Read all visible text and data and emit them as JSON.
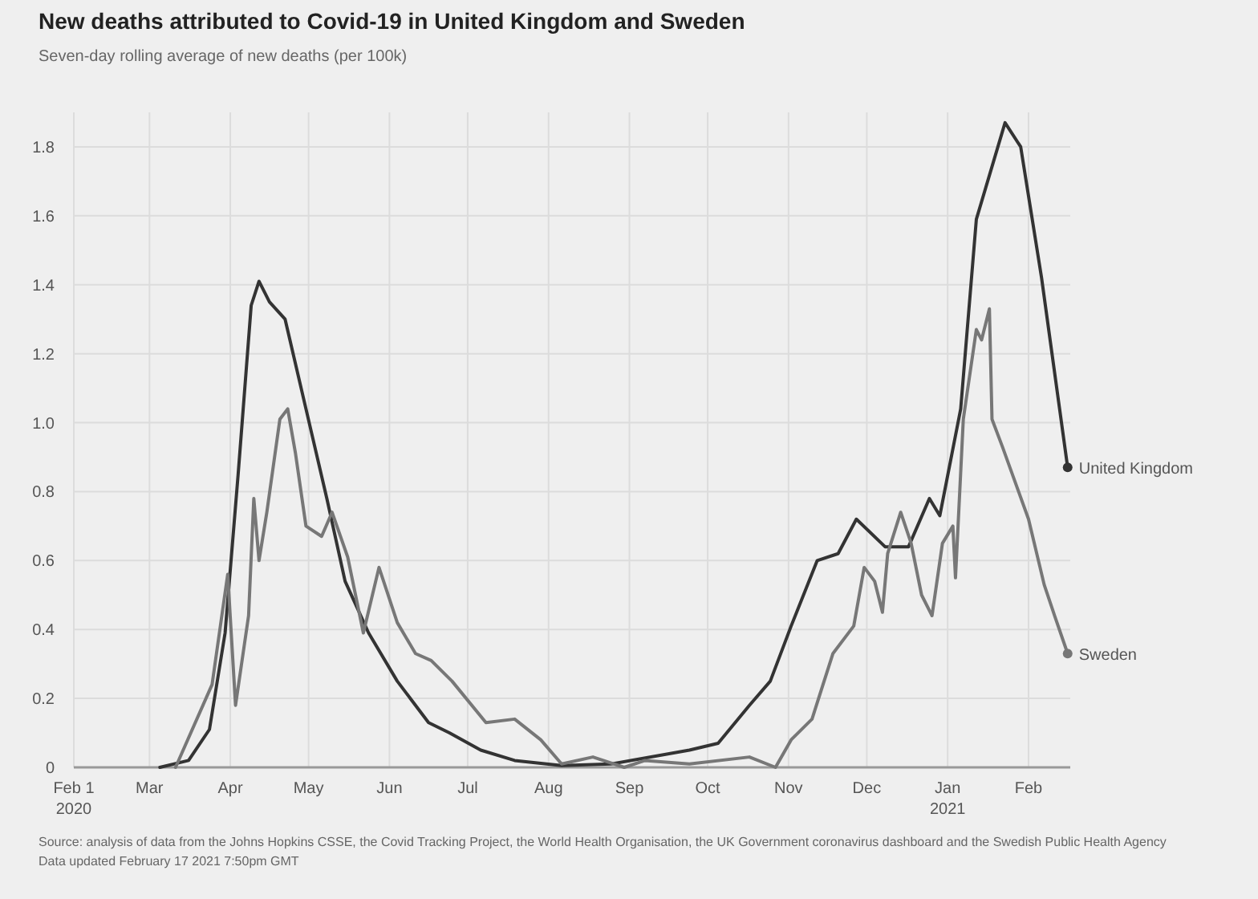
{
  "chart_data": {
    "type": "line",
    "title": "New deaths attributed to Covid-19 in United Kingdom and Sweden",
    "subtitle": "Seven-day rolling average of new deaths (per 100k)",
    "xlim": [
      "2020-02-01",
      "2021-02-17"
    ],
    "xticks": [
      {
        "value": "2020-02-01",
        "label": "Feb 1\n2020"
      },
      {
        "value": "2020-03-01",
        "label": "Mar"
      },
      {
        "value": "2020-04-01",
        "label": "Apr"
      },
      {
        "value": "2020-05-01",
        "label": "May"
      },
      {
        "value": "2020-06-01",
        "label": "Jun"
      },
      {
        "value": "2020-07-01",
        "label": "Jul"
      },
      {
        "value": "2020-08-01",
        "label": "Aug"
      },
      {
        "value": "2020-09-01",
        "label": "Sep"
      },
      {
        "value": "2020-10-01",
        "label": "Oct"
      },
      {
        "value": "2020-11-01",
        "label": "Nov"
      },
      {
        "value": "2020-12-01",
        "label": "Dec"
      },
      {
        "value": "2021-01-01",
        "label": "Jan\n2021"
      },
      {
        "value": "2021-02-01",
        "label": "Feb"
      }
    ],
    "ylim": [
      0,
      1.9
    ],
    "yticks": [
      0,
      0.2,
      0.4,
      0.6,
      0.8,
      {
        "value": 1,
        "label": "1.0"
      },
      1.2,
      1.4,
      1.6,
      1.8
    ],
    "grid": true,
    "series": [
      {
        "name": "United Kingdom",
        "color": "#333333",
        "x": [
          "2020-03-05",
          "2020-03-16",
          "2020-03-24",
          "2020-03-30",
          "2020-04-04",
          "2020-04-09",
          "2020-04-12",
          "2020-04-16",
          "2020-04-22",
          "2020-04-30",
          "2020-05-08",
          "2020-05-15",
          "2020-05-24",
          "2020-06-04",
          "2020-06-16",
          "2020-06-24",
          "2020-07-06",
          "2020-07-19",
          "2020-08-06",
          "2020-08-25",
          "2020-09-24",
          "2020-10-05",
          "2020-10-17",
          "2020-10-25",
          "2020-11-02",
          "2020-11-12",
          "2020-11-20",
          "2020-11-27",
          "2020-12-08",
          "2020-12-17",
          "2020-12-25",
          "2020-12-29",
          "2021-01-06",
          "2021-01-12",
          "2021-01-23",
          "2021-01-29",
          "2021-02-06",
          "2021-02-16"
        ],
        "values": [
          0,
          0.02,
          0.11,
          0.39,
          0.85,
          1.34,
          1.41,
          1.35,
          1.3,
          1.04,
          0.78,
          0.54,
          0.39,
          0.25,
          0.13,
          0.1,
          0.05,
          0.02,
          0.005,
          0.01,
          0.05,
          0.07,
          0.18,
          0.25,
          0.41,
          0.6,
          0.62,
          0.72,
          0.64,
          0.64,
          0.78,
          0.73,
          1.04,
          1.59,
          1.87,
          1.8,
          1.42,
          0.87
        ]
      },
      {
        "name": "Sweden",
        "color": "#777777",
        "x": [
          "2020-03-11",
          "2020-03-25",
          "2020-03-31",
          "2020-04-03",
          "2020-04-08",
          "2020-04-10",
          "2020-04-12",
          "2020-04-15",
          "2020-04-20",
          "2020-04-23",
          "2020-04-26",
          "2020-04-30",
          "2020-05-06",
          "2020-05-10",
          "2020-05-16",
          "2020-05-22",
          "2020-05-28",
          "2020-06-04",
          "2020-06-11",
          "2020-06-17",
          "2020-06-25",
          "2020-07-08",
          "2020-07-19",
          "2020-07-29",
          "2020-08-06",
          "2020-08-18",
          "2020-08-30",
          "2020-09-07",
          "2020-09-24",
          "2020-10-17",
          "2020-10-27",
          "2020-11-02",
          "2020-11-10",
          "2020-11-18",
          "2020-11-26",
          "2020-11-30",
          "2020-12-04",
          "2020-12-07",
          "2020-12-09",
          "2020-12-14",
          "2020-12-18",
          "2020-12-22",
          "2020-12-26",
          "2020-12-30",
          "2021-01-03",
          "2021-01-04",
          "2021-01-07",
          "2021-01-12",
          "2021-01-14",
          "2021-01-17",
          "2021-01-18",
          "2021-01-22",
          "2021-02-01",
          "2021-02-07",
          "2021-02-11",
          "2021-02-16"
        ],
        "values": [
          0,
          0.24,
          0.56,
          0.18,
          0.44,
          0.78,
          0.6,
          0.74,
          1.01,
          1.04,
          0.91,
          0.7,
          0.67,
          0.74,
          0.61,
          0.39,
          0.58,
          0.42,
          0.33,
          0.31,
          0.25,
          0.13,
          0.14,
          0.08,
          0.01,
          0.03,
          0,
          0.02,
          0.01,
          0.03,
          0,
          0.08,
          0.14,
          0.33,
          0.41,
          0.58,
          0.54,
          0.45,
          0.62,
          0.74,
          0.65,
          0.5,
          0.44,
          0.65,
          0.7,
          0.55,
          1.01,
          1.27,
          1.24,
          1.33,
          1.01,
          0.93,
          0.72,
          0.53,
          0.44,
          0.33
        ]
      }
    ],
    "annotations": [
      "Source: analysis of data from the Johns Hopkins CSSE, the Covid Tracking Project, the World Health Organisation, the UK Government coronavirus dashboard and the Swedish Public Health Agency",
      "Data updated February 17 2021 7:50pm GMT"
    ]
  }
}
